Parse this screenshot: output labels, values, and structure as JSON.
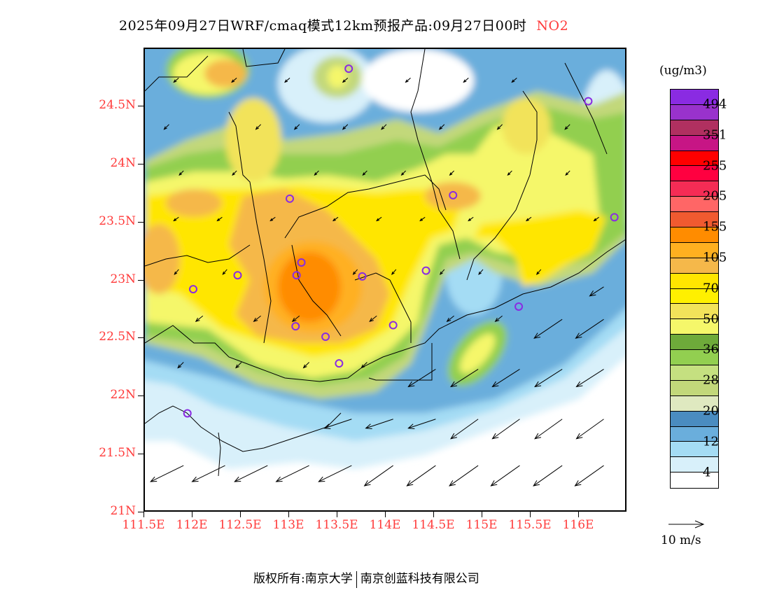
{
  "title": {
    "main": "2025年09月27日WRF/cmaq模式12km预报产品:09月27日00时",
    "species": "NO2"
  },
  "axes": {
    "lat_labels": [
      {
        "lat": 24.5,
        "text": "24.5N"
      },
      {
        "lat": 24,
        "text": "24N"
      },
      {
        "lat": 23.5,
        "text": "23.5N"
      },
      {
        "lat": 23,
        "text": "23N"
      },
      {
        "lat": 22.5,
        "text": "22.5N"
      },
      {
        "lat": 22,
        "text": "22N"
      },
      {
        "lat": 21.5,
        "text": "21.5N"
      },
      {
        "lat": 21,
        "text": "21N"
      }
    ],
    "lon_labels": [
      {
        "lon": 111.5,
        "text": "111.5E"
      },
      {
        "lon": 112,
        "text": "112E"
      },
      {
        "lon": 112.5,
        "text": "112.5E"
      },
      {
        "lon": 113,
        "text": "113E"
      },
      {
        "lon": 113.5,
        "text": "113.5E"
      },
      {
        "lon": 114,
        "text": "114E"
      },
      {
        "lon": 114.5,
        "text": "114.5E"
      },
      {
        "lon": 115,
        "text": "115E"
      },
      {
        "lon": 115.5,
        "text": "115.5E"
      },
      {
        "lon": 116,
        "text": "116E"
      }
    ],
    "lon_range": [
      111.5,
      116.5
    ],
    "lat_range": [
      21,
      25
    ]
  },
  "legend": {
    "unit": "(ug/m3)",
    "colors": [
      "#8a2be2",
      "#9932cc",
      "#b03060",
      "#c71585",
      "#ff0000",
      "#ff0040",
      "#f52c55",
      "#ff6666",
      "#f05a30",
      "#ff8c00",
      "#ffb020",
      "#f5b84a",
      "#ffe600",
      "#fff000",
      "#f2e35a",
      "#f5f76a",
      "#6eaa3a",
      "#92cf50",
      "#c5e080",
      "#c2d87a",
      "#dfe9c0",
      "#4a8cc0",
      "#6aaedc",
      "#a4dcf4",
      "#d8f0fa",
      "#ffffff"
    ],
    "labels": [
      "494",
      "351",
      "255",
      "205",
      "155",
      "105",
      "70",
      "50",
      "36",
      "28",
      "20",
      "12",
      "4"
    ],
    "wind_scale": "10 m/s"
  },
  "stations": [
    {
      "lon": 113.61,
      "lat": 24.83
    },
    {
      "lon": 116.09,
      "lat": 24.55
    },
    {
      "lon": 113.0,
      "lat": 23.71
    },
    {
      "lon": 114.69,
      "lat": 23.74
    },
    {
      "lon": 116.36,
      "lat": 23.55
    },
    {
      "lon": 113.12,
      "lat": 23.16
    },
    {
      "lon": 113.07,
      "lat": 23.05
    },
    {
      "lon": 112.46,
      "lat": 23.05
    },
    {
      "lon": 113.75,
      "lat": 23.04
    },
    {
      "lon": 114.41,
      "lat": 23.09
    },
    {
      "lon": 112.0,
      "lat": 22.93
    },
    {
      "lon": 115.37,
      "lat": 22.78
    },
    {
      "lon": 113.06,
      "lat": 22.61
    },
    {
      "lon": 113.37,
      "lat": 22.52
    },
    {
      "lon": 114.07,
      "lat": 22.62
    },
    {
      "lon": 113.51,
      "lat": 22.29
    },
    {
      "lon": 111.94,
      "lat": 21.86
    }
  ],
  "wind": [
    {
      "lat": 21.41,
      "lons": [
        111.9,
        112.33,
        112.77,
        113.2,
        113.64
      ],
      "u": -9.4,
      "v": -4.6
    },
    {
      "lat": 21.41,
      "lons": [
        114.07,
        114.51,
        114.95,
        115.38,
        115.82,
        116.25
      ],
      "u": -8.2,
      "v": -5.8
    },
    {
      "lat": 21.81,
      "lons": [
        113.64,
        114.07,
        114.51
      ],
      "u": -7.8,
      "v": -2.6
    },
    {
      "lat": 21.81,
      "lons": [
        114.95,
        115.38,
        115.82,
        116.25
      ],
      "u": -7.8,
      "v": -5.6
    },
    {
      "lat": 22.24,
      "lons": [
        114.51,
        114.95,
        115.38,
        115.82,
        116.25
      ],
      "u": -7.8,
      "v": -5.0
    },
    {
      "lat": 22.67,
      "lons": [
        115.82,
        116.25
      ],
      "u": -8.0,
      "v": -5.4
    },
    {
      "lat": 22.95,
      "lons": [
        116.25
      ],
      "u": -4.0,
      "v": -2.6
    },
    {
      "lat": 24.75,
      "lons": [
        111.85,
        112.45,
        113.0,
        113.6,
        114.25,
        114.85,
        115.35
      ],
      "u": -1.4,
      "v": -1.2
    },
    {
      "lat": 24.35,
      "lons": [
        111.75,
        112.7,
        113.1,
        113.6,
        114.0,
        114.6,
        115.2,
        115.9
      ],
      "u": -1.4,
      "v": -1.4
    },
    {
      "lat": 23.95,
      "lons": [
        111.9,
        112.45,
        113.3,
        113.8,
        114.2,
        114.7,
        115.3,
        115.9
      ],
      "u": -1.2,
      "v": -1.2
    },
    {
      "lat": 23.55,
      "lons": [
        111.85,
        112.3,
        112.85,
        113.5,
        113.95,
        114.4,
        114.9,
        115.5,
        116.2
      ],
      "u": -1.4,
      "v": -1.0
    },
    {
      "lat": 23.1,
      "lons": [
        111.85,
        112.35,
        113.7,
        114.1,
        114.6,
        115.0,
        115.6
      ],
      "u": -1.2,
      "v": -1.4
    },
    {
      "lat": 22.7,
      "lons": [
        112.1,
        112.7,
        113.1,
        113.9,
        114.7,
        115.2
      ],
      "u": -2.0,
      "v": -1.6
    },
    {
      "lat": 22.3,
      "lons": [
        111.9,
        112.5,
        113.2,
        113.8
      ],
      "u": -1.6,
      "v": -1.6
    }
  ],
  "footer": {
    "left": "版权所有:南京大学",
    "right": "南京创蓝科技有限公司"
  }
}
